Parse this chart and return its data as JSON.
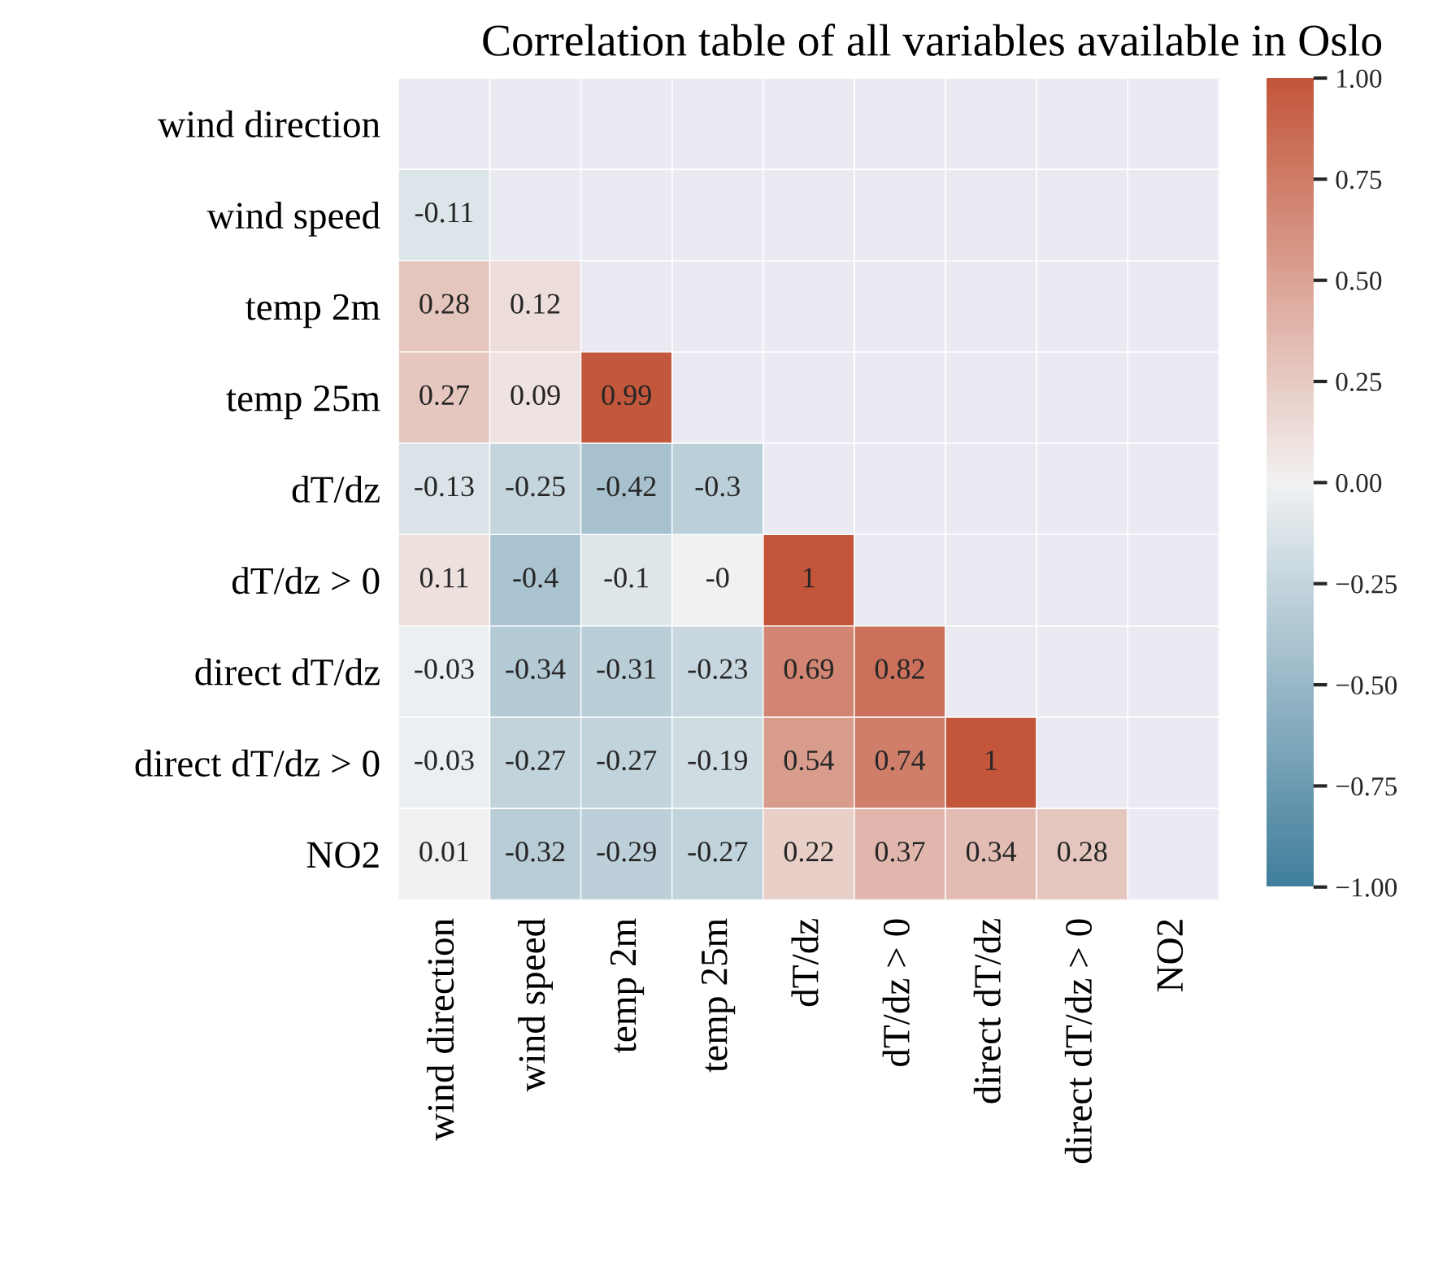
{
  "chart_data": {
    "type": "heatmap",
    "title": "Correlation table of all variables available in Oslo",
    "categories": [
      "wind direction",
      "wind speed",
      "temp 2m",
      "temp 25m",
      "dT/dz",
      "dT/dz > 0",
      "direct dT/dz",
      "direct dT/dz > 0",
      "NO2"
    ],
    "y_categories": [
      "wind direction",
      "wind speed",
      "temp 2m",
      "temp 25m",
      "dT/dz",
      "dT/dz > 0",
      "direct dT/dz",
      "direct dT/dz > 0",
      "NO2"
    ],
    "cells": [
      [
        null,
        null,
        null,
        null,
        null,
        null,
        null,
        null,
        null
      ],
      [
        -0.11,
        null,
        null,
        null,
        null,
        null,
        null,
        null,
        null
      ],
      [
        0.28,
        0.12,
        null,
        null,
        null,
        null,
        null,
        null,
        null
      ],
      [
        0.27,
        0.09,
        0.99,
        null,
        null,
        null,
        null,
        null,
        null
      ],
      [
        -0.13,
        -0.25,
        -0.42,
        -0.3,
        null,
        null,
        null,
        null,
        null
      ],
      [
        0.11,
        -0.4,
        -0.1,
        -0.0,
        1,
        null,
        null,
        null,
        null
      ],
      [
        -0.03,
        -0.34,
        -0.31,
        -0.23,
        0.69,
        0.82,
        null,
        null,
        null
      ],
      [
        -0.03,
        -0.27,
        -0.27,
        -0.19,
        0.54,
        0.74,
        1,
        null,
        null
      ],
      [
        0.01,
        -0.32,
        -0.29,
        -0.27,
        0.22,
        0.37,
        0.34,
        0.28,
        null
      ]
    ],
    "cell_labels": [
      [
        null,
        null,
        null,
        null,
        null,
        null,
        null,
        null,
        null
      ],
      [
        "-0.11",
        null,
        null,
        null,
        null,
        null,
        null,
        null,
        null
      ],
      [
        "0.28",
        "0.12",
        null,
        null,
        null,
        null,
        null,
        null,
        null
      ],
      [
        "0.27",
        "0.09",
        "0.99",
        null,
        null,
        null,
        null,
        null,
        null
      ],
      [
        "-0.13",
        "-0.25",
        "-0.42",
        "-0.3",
        null,
        null,
        null,
        null,
        null
      ],
      [
        "0.11",
        "-0.4",
        "-0.1",
        "-0",
        "1",
        null,
        null,
        null,
        null
      ],
      [
        "-0.03",
        "-0.34",
        "-0.31",
        "-0.23",
        "0.69",
        "0.82",
        null,
        null,
        null
      ],
      [
        "-0.03",
        "-0.27",
        "-0.27",
        "-0.19",
        "0.54",
        "0.74",
        "1",
        null,
        null
      ],
      [
        "0.01",
        "-0.32",
        "-0.29",
        "-0.27",
        "0.22",
        "0.37",
        "0.34",
        "0.28",
        null
      ]
    ],
    "clim": [
      -1.0,
      1.0
    ],
    "cticks": [
      {
        "value": 1.0,
        "label": "1.00"
      },
      {
        "value": 0.75,
        "label": "0.75"
      },
      {
        "value": 0.5,
        "label": "0.50"
      },
      {
        "value": 0.25,
        "label": "0.25"
      },
      {
        "value": 0.0,
        "label": "0.00"
      },
      {
        "value": -0.25,
        "label": "−0.25"
      },
      {
        "value": -0.5,
        "label": "−0.50"
      },
      {
        "value": -0.75,
        "label": "−0.75"
      },
      {
        "value": -1.0,
        "label": "−1.00"
      }
    ]
  }
}
